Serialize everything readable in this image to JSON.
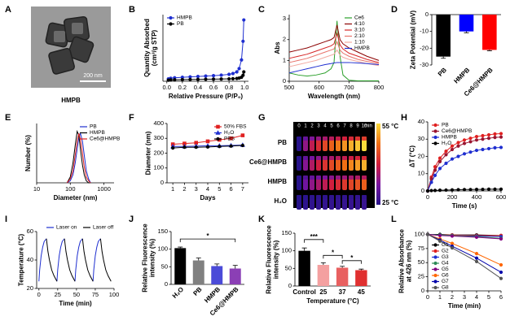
{
  "tem_image": {
    "panel": "A",
    "caption": "HMPB",
    "scale_bar": "200 nm"
  },
  "thermal_image": {
    "panel": "G",
    "times": [
      "0",
      "1",
      "2",
      "3",
      "4",
      "5",
      "6",
      "7",
      "8",
      "9",
      "10"
    ],
    "time_unit": "min",
    "rows": [
      "PB",
      "Ce6@HMPB",
      "HMPB",
      "H₂O"
    ],
    "max_label": "55 °C",
    "min_label": "25 °C"
  },
  "chart_data": [
    {
      "type": "line",
      "panel": "B",
      "xlabel": "Relative Pressure (P/P₀)",
      "ylabel": [
        "Quantity Absorbed",
        "(cm³/g STP)"
      ],
      "x": [
        0.02,
        0.05,
        0.1,
        0.2,
        0.3,
        0.4,
        0.5,
        0.6,
        0.7,
        0.8,
        0.85,
        0.9,
        0.93,
        0.96,
        0.98,
        0.99
      ],
      "xlim": [
        -0.05,
        1.05
      ],
      "xticks": [
        {
          "value": 0,
          "label": "0.0"
        },
        0.2,
        0.4,
        0.6,
        0.8,
        {
          "value": 1,
          "label": "1.0"
        }
      ],
      "ylim": [
        0,
        500
      ],
      "legend": "upper left",
      "series": [
        {
          "name": "HMPB",
          "color": "#1f2fd0",
          "marker": "circle",
          "values": [
            18,
            22,
            26,
            30,
            33,
            36,
            39,
            42,
            46,
            52,
            58,
            70,
            95,
            160,
            300,
            460
          ]
        },
        {
          "name": "PB",
          "color": "#000000",
          "marker": "circle",
          "values": [
            8,
            10,
            11,
            12,
            13,
            14,
            15,
            16,
            17,
            18,
            19,
            21,
            24,
            30,
            45,
            70
          ]
        }
      ]
    },
    {
      "type": "line",
      "panel": "C",
      "xlabel": "Wavelength (nm)",
      "ylabel": "Abs",
      "x": [
        500,
        530,
        560,
        590,
        620,
        640,
        650,
        660,
        670,
        680,
        700,
        730,
        760,
        800
      ],
      "xlim": [
        500,
        800
      ],
      "xticks": [
        500,
        600,
        700,
        800
      ],
      "ylim": [
        0,
        3.2
      ],
      "yticks": [
        0,
        1,
        2,
        3
      ],
      "legend": "upper right",
      "series": [
        {
          "name": "Ce6",
          "color": "#2ca02c",
          "values": [
            0.4,
            0.3,
            0.25,
            0.3,
            0.4,
            0.6,
            0.9,
            2.9,
            1.2,
            0.3,
            0.05,
            0.02,
            0.02,
            0.02
          ]
        },
        {
          "name": "4:10",
          "color": "#8b0000",
          "values": [
            1.4,
            1.5,
            1.6,
            1.75,
            1.9,
            2.0,
            2.1,
            2.7,
            2.0,
            1.8,
            1.6,
            1.4,
            1.2,
            1.0
          ]
        },
        {
          "name": "3:10",
          "color": "#d62728",
          "values": [
            1.1,
            1.2,
            1.3,
            1.45,
            1.6,
            1.7,
            1.8,
            2.3,
            1.75,
            1.55,
            1.35,
            1.2,
            1.05,
            0.9
          ]
        },
        {
          "name": "2:10",
          "color": "#e8736b",
          "values": [
            0.9,
            1.0,
            1.1,
            1.25,
            1.4,
            1.5,
            1.55,
            1.9,
            1.5,
            1.35,
            1.2,
            1.05,
            0.95,
            0.85
          ]
        },
        {
          "name": "1:10",
          "color": "#f2a9a0",
          "values": [
            0.7,
            0.8,
            0.9,
            1.0,
            1.15,
            1.25,
            1.3,
            1.5,
            1.25,
            1.15,
            1.05,
            0.95,
            0.85,
            0.75
          ]
        },
        {
          "name": "HMPB",
          "color": "#1f2fd0",
          "values": [
            0.4,
            0.5,
            0.6,
            0.7,
            0.8,
            0.85,
            0.88,
            0.9,
            0.9,
            0.9,
            0.9,
            0.88,
            0.85,
            0.8
          ]
        }
      ]
    },
    {
      "type": "bar",
      "panel": "D",
      "ylabel": "Zeta Potential (mV)",
      "categories": [
        "PB",
        "HMPB",
        "Ce6@HMPB"
      ],
      "values": [
        -25,
        -10,
        -21
      ],
      "errors": [
        1,
        0.8,
        0.5
      ],
      "colors": [
        "#000000",
        "#0000ff",
        "#ff0000"
      ],
      "ylim": [
        -30,
        0
      ],
      "yticks": [
        0,
        -10,
        -20,
        -30
      ],
      "xtick_rotation": 45
    },
    {
      "type": "line",
      "panel": "E",
      "xlabel": "Diameter (nm)",
      "ylabel": "Number (%)",
      "xscale": "log",
      "x": [
        80,
        100,
        120,
        140,
        160,
        180,
        200,
        230,
        260,
        300,
        350,
        400
      ],
      "xlim": [
        10,
        2000
      ],
      "xticks": [
        10,
        100,
        1000
      ],
      "ylim": [
        0,
        30
      ],
      "legend": "upper right",
      "series": [
        {
          "name": "PB",
          "color": "#1f2fd0",
          "values": [
            0,
            1,
            4,
            10,
            17,
            23,
            25,
            21,
            14,
            6,
            2,
            0
          ]
        },
        {
          "name": "HMPB",
          "color": "#000000",
          "values": [
            0,
            3,
            10,
            19,
            26,
            24,
            17,
            9,
            4,
            1,
            0,
            0
          ]
        },
        {
          "name": "Ce6@HMPB",
          "color": "#e02020",
          "values": [
            0,
            2,
            6,
            14,
            21,
            25,
            22,
            15,
            8,
            3,
            1,
            0
          ]
        }
      ]
    },
    {
      "type": "line",
      "panel": "F",
      "xlabel": "Days",
      "ylabel": "Diameter (nm)",
      "x": [
        1,
        2,
        3,
        4,
        5,
        6,
        7
      ],
      "xlim": [
        0.5,
        7.5
      ],
      "xticks": [
        1,
        2,
        3,
        4,
        5,
        6,
        7
      ],
      "ylim": [
        0,
        400
      ],
      "yticks": [
        0,
        100,
        200,
        300,
        400
      ],
      "legend": "upper right",
      "series": [
        {
          "name": "50% FBS",
          "color": "#e02020",
          "marker": "square",
          "values": [
            260,
            265,
            270,
            280,
            290,
            300,
            320
          ]
        },
        {
          "name": "H₂O",
          "color": "#1f2fd0",
          "marker": "triangle",
          "values": [
            245,
            245,
            247,
            250,
            250,
            252,
            255
          ]
        },
        {
          "name": "PBS",
          "color": "#000000",
          "marker": "circle",
          "values": [
            235,
            240,
            240,
            242,
            245,
            248,
            252
          ]
        }
      ]
    },
    {
      "type": "line",
      "panel": "H",
      "xlabel": "Time (s)",
      "ylabel": "ΔT (°C)",
      "x": [
        0,
        30,
        60,
        100,
        150,
        200,
        250,
        300,
        350,
        400,
        450,
        500,
        550,
        600
      ],
      "xlim": [
        0,
        600
      ],
      "xticks": [
        0,
        200,
        400,
        600
      ],
      "ylim": [
        0,
        40
      ],
      "yticks": [
        0,
        10,
        20,
        30,
        40
      ],
      "legend": "upper left",
      "series": [
        {
          "name": "PB",
          "color": "#e02020",
          "marker": "circle",
          "values": [
            0,
            8,
            14,
            19,
            23,
            26,
            28,
            29.5,
            30.5,
            31.5,
            32,
            32.5,
            33,
            33.2
          ]
        },
        {
          "name": "Ce6@HMPB",
          "color": "#9a1530",
          "marker": "circle",
          "values": [
            0,
            7,
            12,
            17,
            21,
            24,
            26,
            27.5,
            28.5,
            29.5,
            30,
            30.5,
            31,
            31.2
          ]
        },
        {
          "name": "HMPB",
          "color": "#1f2fd0",
          "marker": "circle",
          "values": [
            0,
            5,
            9,
            13,
            16,
            18.5,
            20,
            21.5,
            22.5,
            23.5,
            24,
            24.5,
            25,
            25.2
          ]
        },
        {
          "name": "H₂O",
          "color": "#000000",
          "marker": "circle",
          "values": [
            0,
            0.2,
            0.3,
            0.4,
            0.5,
            0.6,
            0.7,
            0.8,
            0.8,
            0.9,
            0.9,
            1,
            1,
            1
          ]
        }
      ]
    },
    {
      "type": "line",
      "panel": "I",
      "xlabel": "Time (min)",
      "ylabel": "Temperature (°C)",
      "x": [
        0,
        1,
        3,
        5,
        7,
        10,
        12,
        14,
        17,
        20,
        24,
        25,
        27,
        29,
        31,
        34,
        36,
        38,
        41,
        44,
        48,
        49,
        51,
        53,
        55,
        58,
        60,
        62,
        65,
        68,
        72,
        73,
        75,
        77,
        79,
        82,
        84,
        86,
        89,
        92,
        96
      ],
      "xlim": [
        -3,
        100
      ],
      "xticks": [
        0,
        25,
        50,
        75,
        100
      ],
      "ylim": [
        20,
        60
      ],
      "yticks": [
        20,
        40,
        60
      ],
      "legend": "top",
      "series": [
        {
          "name": "Laser on",
          "color": "#1f2fd0",
          "values": [
            25,
            33,
            43,
            49,
            53,
            55,
            null,
            null,
            null,
            null,
            25,
            33,
            43,
            49,
            53,
            55,
            null,
            null,
            null,
            null,
            25,
            33,
            43,
            49,
            53,
            55,
            null,
            null,
            null,
            null,
            25,
            33,
            43,
            49,
            53,
            55,
            null,
            null,
            null,
            null,
            null
          ]
        },
        {
          "name": "Laser off",
          "color": "#000000",
          "values": [
            null,
            null,
            null,
            null,
            null,
            55,
            46,
            40,
            33,
            29,
            25,
            null,
            null,
            null,
            null,
            55,
            46,
            40,
            33,
            29,
            25,
            null,
            null,
            null,
            null,
            55,
            46,
            40,
            33,
            29,
            25,
            null,
            null,
            null,
            null,
            55,
            46,
            40,
            33,
            29,
            25
          ]
        }
      ]
    },
    {
      "type": "bar",
      "panel": "J",
      "ylabel": [
        "Relative Fluorescence",
        "intensity (%)"
      ],
      "categories": [
        "H₂O",
        "PB",
        "HMPB",
        "Ce6@HMPB"
      ],
      "values": [
        103,
        68,
        52,
        45
      ],
      "errors": [
        3,
        7,
        6,
        9
      ],
      "colors": [
        "#000000",
        "#808080",
        "#4b4bd8",
        "#8b3fb5"
      ],
      "ylim": [
        0,
        150
      ],
      "yticks": [
        0,
        50,
        100,
        150
      ],
      "xtick_rotation": 45,
      "annotations": [
        "*"
      ]
    },
    {
      "type": "bar",
      "panel": "K",
      "xlabel": "Temperature (°C)",
      "ylabel": [
        "Relative Fluorescence",
        "intensity (%)"
      ],
      "categories": [
        "Control",
        "25",
        "37",
        "45"
      ],
      "values": [
        100,
        60,
        52,
        45
      ],
      "errors": [
        8,
        6,
        4,
        3
      ],
      "colors": [
        "#000000",
        "#f4a0a0",
        "#e86060",
        "#e03030"
      ],
      "ylim": [
        0,
        150
      ],
      "yticks": [
        0,
        50,
        100,
        150
      ],
      "annotations": [
        "***",
        "*",
        "*"
      ]
    },
    {
      "type": "line",
      "panel": "L",
      "xlabel": "Time (min)",
      "ylabel": [
        "Relative Absorbance",
        "at 426 nm (%)"
      ],
      "x": [
        0,
        1,
        2,
        4,
        6
      ],
      "xlim": [
        0,
        6
      ],
      "xticks": [
        0,
        1,
        2,
        3,
        4,
        5,
        6
      ],
      "ylim": [
        0,
        105
      ],
      "yticks": [
        0,
        25,
        50,
        75,
        100
      ],
      "legend": "lower left",
      "series": [
        {
          "name": "G1",
          "color": "#000000",
          "marker": "circle",
          "values": [
            100,
            100,
            99,
            99,
            98
          ]
        },
        {
          "name": "G2",
          "color": "#e02020",
          "marker": "circle",
          "values": [
            100,
            99,
            99,
            98,
            98
          ]
        },
        {
          "name": "G3",
          "color": "#1f2fd0",
          "marker": "circle",
          "values": [
            100,
            99,
            98,
            97,
            96
          ]
        },
        {
          "name": "G4",
          "color": "#2e8b57",
          "marker": "circle",
          "values": [
            100,
            99,
            98,
            96,
            93
          ]
        },
        {
          "name": "G5",
          "color": "#800080",
          "marker": "circle",
          "values": [
            100,
            98,
            97,
            95,
            92
          ]
        },
        {
          "name": "G6",
          "color": "#ff6600",
          "marker": "circle",
          "values": [
            100,
            92,
            84,
            66,
            46
          ]
        },
        {
          "name": "G7",
          "color": "#0000aa",
          "marker": "circle",
          "values": [
            100,
            90,
            79,
            58,
            33
          ]
        },
        {
          "name": "G8",
          "color": "#555555",
          "marker": "circle",
          "values": [
            100,
            88,
            76,
            52,
            22
          ]
        }
      ]
    }
  ]
}
